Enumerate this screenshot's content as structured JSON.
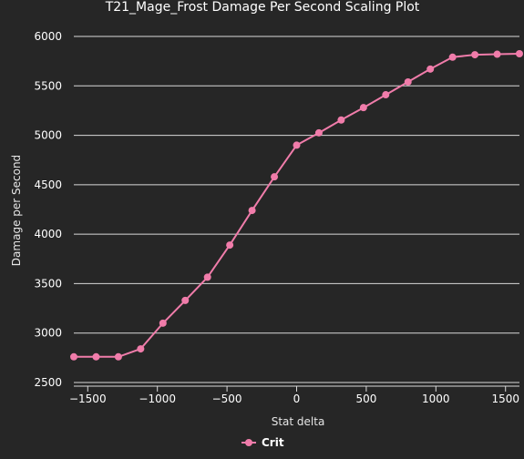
{
  "chart_data": {
    "type": "line",
    "title": "T21_Mage_Frost Damage Per Second Scaling Plot",
    "xlabel": "Stat delta",
    "ylabel": "Damage per Second",
    "xlim": [
      -1600,
      1600
    ],
    "ylim": [
      2500,
      6000
    ],
    "x_ticks": [
      -1500,
      -1000,
      -500,
      0,
      500,
      1000,
      1500
    ],
    "y_ticks": [
      2500,
      3000,
      3500,
      4000,
      4500,
      5000,
      5500,
      6000
    ],
    "grid": "horizontal",
    "legend_position": "bottom",
    "series": [
      {
        "name": "Crit",
        "color": "#f07caa",
        "x": [
          -1600,
          -1440,
          -1280,
          -1120,
          -960,
          -800,
          -640,
          -480,
          -320,
          -160,
          0,
          160,
          320,
          480,
          640,
          800,
          960,
          1120,
          1280,
          1440,
          1600
        ],
        "y": [
          2760,
          2760,
          2760,
          2840,
          3100,
          3330,
          3565,
          3890,
          4240,
          4580,
          4900,
          5025,
          5155,
          5280,
          5410,
          5540,
          5670,
          5790,
          5815,
          5820,
          5825
        ]
      }
    ]
  }
}
